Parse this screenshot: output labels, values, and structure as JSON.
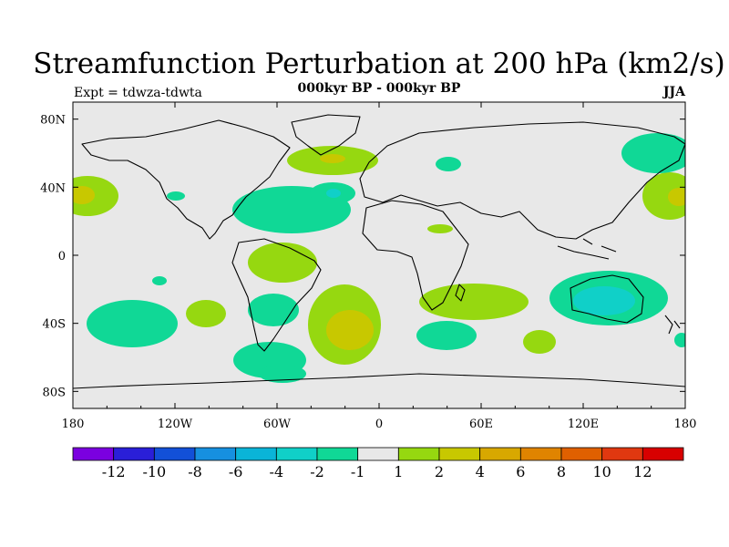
{
  "header": {
    "title": "Streamfunction Perturbation at 200 hPa (km2/s)",
    "subtitle": "000kyr BP - 000kyr BP",
    "left_label": "Expt = tdwza-tdwta",
    "right_label": "JJA"
  },
  "map": {
    "projection": "cylindrical equidistant",
    "background_color": "#e8e8e8",
    "lon_range": [
      -180,
      180
    ],
    "lat_range": [
      -90,
      90
    ],
    "lon_ticks": [
      "180",
      "120W",
      "60W",
      "0",
      "60E",
      "120E",
      "180"
    ],
    "lat_ticks": [
      "80N",
      "40N",
      "0",
      "40S",
      "80S"
    ]
  },
  "colorbar": {
    "colors": [
      "#7b00e0",
      "#2a1fd8",
      "#1250d8",
      "#1690e0",
      "#0ab4d8",
      "#10d0c8",
      "#10d896",
      "#e8e8e8",
      "#96d810",
      "#c8c800",
      "#d8a800",
      "#e08400",
      "#e06000",
      "#e03810",
      "#d80000"
    ],
    "labels": [
      "-12",
      "-10",
      "-8",
      "-6",
      "-4",
      "-2",
      "-1",
      "1",
      "2",
      "4",
      "6",
      "8",
      "10",
      "12"
    ]
  },
  "contours": [
    {
      "level": "1 to 2",
      "color": "#96d810"
    },
    {
      "level": "2 to 4",
      "color": "#c8c800"
    },
    {
      "level": "-1 to -2",
      "color": "#10d896"
    },
    {
      "level": "-2 to -4",
      "color": "#10d0c8"
    }
  ]
}
